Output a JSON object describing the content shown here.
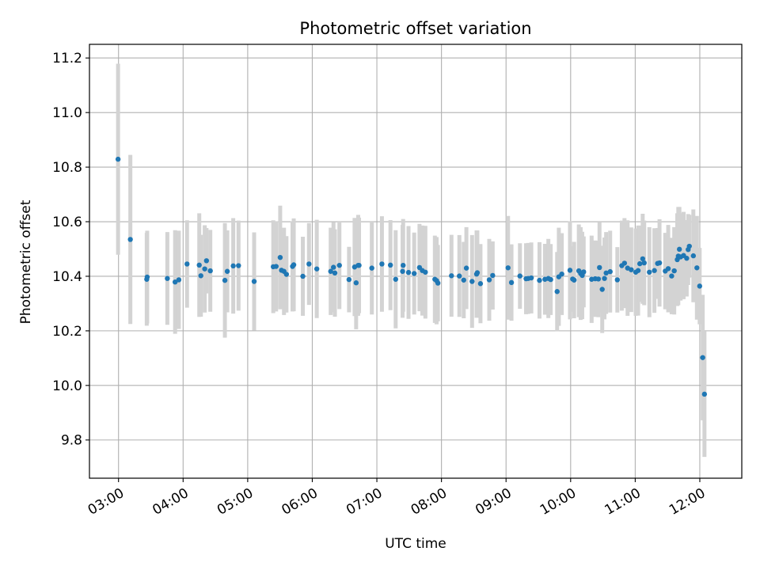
{
  "chart_data": {
    "type": "scatter",
    "title": "Photometric offset variation",
    "xlabel": "UTC time",
    "ylabel": "Photometric offset",
    "x_unit": "hours (UTC)",
    "xlim": [
      2.55,
      12.65
    ],
    "ylim": [
      9.66,
      11.25
    ],
    "grid": true,
    "legend": "none",
    "x_ticks": [
      {
        "value": 3,
        "label": "03:00"
      },
      {
        "value": 4,
        "label": "04:00"
      },
      {
        "value": 5,
        "label": "05:00"
      },
      {
        "value": 6,
        "label": "06:00"
      },
      {
        "value": 7,
        "label": "07:00"
      },
      {
        "value": 8,
        "label": "08:00"
      },
      {
        "value": 9,
        "label": "09:00"
      },
      {
        "value": 10,
        "label": "10:00"
      },
      {
        "value": 11,
        "label": "11:00"
      },
      {
        "value": 12,
        "label": "12:00"
      }
    ],
    "y_ticks": [
      {
        "value": 9.8,
        "label": "9.8"
      },
      {
        "value": 10.0,
        "label": "10.0"
      },
      {
        "value": 10.2,
        "label": "10.2"
      },
      {
        "value": 10.4,
        "label": "10.4"
      },
      {
        "value": 10.6,
        "label": "10.6"
      },
      {
        "value": 10.8,
        "label": "10.8"
      },
      {
        "value": 11.0,
        "label": "11.0"
      },
      {
        "value": 11.2,
        "label": "11.2"
      }
    ],
    "colors": {
      "point": "#1f77b4",
      "errorbar": "#d3d3d3",
      "grid": "#b0b0b0",
      "axes": "#000000"
    },
    "series": [
      {
        "x": [
          2.993,
          3.183,
          3.437,
          3.444,
          3.756,
          3.876,
          3.934,
          4.061,
          4.25,
          4.275,
          4.335,
          4.362,
          4.421,
          4.647,
          4.684,
          4.776,
          4.858,
          5.1,
          5.396,
          5.44,
          5.503,
          5.523,
          5.562,
          5.6,
          5.694,
          5.713,
          5.854,
          5.949,
          6.07,
          6.285,
          6.328,
          6.35,
          6.42,
          6.569,
          6.655,
          6.679,
          6.711,
          6.724,
          6.922,
          7.078,
          7.21,
          7.291,
          7.398,
          7.407,
          7.49,
          7.578,
          7.66,
          7.704,
          7.751,
          7.898,
          7.925,
          7.945,
          8.155,
          8.277,
          8.345,
          8.386,
          8.474,
          8.544,
          8.555,
          8.604,
          8.74,
          8.793,
          9.031,
          9.084,
          9.215,
          9.31,
          9.343,
          9.391,
          9.518,
          9.602,
          9.655,
          9.691,
          9.791,
          9.817,
          9.863,
          9.99,
          10.031,
          10.054,
          10.127,
          10.155,
          10.18,
          10.202,
          10.325,
          10.381,
          10.43,
          10.447,
          10.489,
          10.524,
          10.55,
          10.612,
          10.723,
          10.792,
          10.834,
          10.882,
          10.938,
          11.008,
          11.045,
          11.071,
          11.116,
          11.139,
          11.219,
          11.297,
          11.346,
          11.376,
          11.465,
          11.511,
          11.564,
          11.604,
          11.651,
          11.667,
          11.684,
          11.703,
          11.749,
          11.797,
          11.82,
          11.838,
          11.9,
          11.955,
          11.998,
          12.045,
          12.072
        ],
        "y": [
          10.829,
          10.535,
          10.389,
          10.397,
          10.392,
          10.379,
          10.387,
          10.445,
          10.441,
          10.402,
          10.427,
          10.457,
          10.42,
          10.385,
          10.418,
          10.438,
          10.439,
          10.381,
          10.435,
          10.436,
          10.469,
          10.422,
          10.418,
          10.407,
          10.436,
          10.442,
          10.4,
          10.445,
          10.427,
          10.418,
          10.433,
          10.412,
          10.44,
          10.388,
          10.434,
          10.376,
          10.44,
          10.44,
          10.43,
          10.445,
          10.441,
          10.389,
          10.418,
          10.44,
          10.414,
          10.41,
          10.432,
          10.421,
          10.415,
          10.389,
          10.384,
          10.375,
          10.402,
          10.401,
          10.386,
          10.43,
          10.381,
          10.408,
          10.413,
          10.373,
          10.387,
          10.403,
          10.431,
          10.377,
          10.401,
          10.391,
          10.392,
          10.394,
          10.385,
          10.389,
          10.392,
          10.388,
          10.344,
          10.398,
          10.408,
          10.422,
          10.39,
          10.386,
          10.42,
          10.41,
          10.403,
          10.416,
          10.389,
          10.391,
          10.39,
          10.432,
          10.352,
          10.392,
          10.412,
          10.417,
          10.387,
          10.439,
          10.448,
          10.43,
          10.424,
          10.415,
          10.421,
          10.446,
          10.464,
          10.449,
          10.415,
          10.421,
          10.447,
          10.449,
          10.419,
          10.428,
          10.401,
          10.42,
          10.461,
          10.474,
          10.499,
          10.471,
          10.476,
          10.466,
          10.498,
          10.51,
          10.475,
          10.431,
          10.364,
          10.102,
          9.968
        ],
        "err": [
          0.35,
          0.31,
          0.17,
          0.17,
          0.17,
          0.19,
          0.18,
          0.16,
          0.19,
          0.15,
          0.16,
          0.12,
          0.15,
          0.21,
          0.15,
          0.175,
          0.165,
          0.18,
          0.17,
          0.165,
          0.19,
          0.14,
          0.16,
          0.14,
          0.165,
          0.17,
          0.145,
          0.15,
          0.18,
          0.16,
          0.165,
          0.16,
          0.16,
          0.12,
          0.18,
          0.17,
          0.185,
          0.175,
          0.17,
          0.175,
          0.165,
          0.18,
          0.17,
          0.17,
          0.17,
          0.15,
          0.16,
          0.165,
          0.17,
          0.16,
          0.16,
          0.14,
          0.15,
          0.15,
          0.14,
          0.15,
          0.17,
          0.16,
          0.155,
          0.145,
          0.15,
          0.125,
          0.19,
          0.14,
          0.12,
          0.13,
          0.13,
          0.13,
          0.14,
          0.13,
          0.145,
          0.13,
          0.145,
          0.18,
          0.15,
          0.18,
          0.12,
          0.14,
          0.17,
          0.17,
          0.16,
          0.13,
          0.16,
          0.14,
          0.14,
          0.165,
          0.16,
          0.15,
          0.15,
          0.15,
          0.12,
          0.165,
          0.165,
          0.175,
          0.155,
          0.16,
          0.165,
          0.14,
          0.165,
          0.155,
          0.165,
          0.155,
          0.13,
          0.16,
          0.14,
          0.16,
          0.14,
          0.16,
          0.17,
          0.18,
          0.155,
          0.16,
          0.16,
          0.14,
          0.13,
          0.115,
          0.17,
          0.19,
          0.14,
          0.23,
          0.23
        ]
      }
    ]
  }
}
